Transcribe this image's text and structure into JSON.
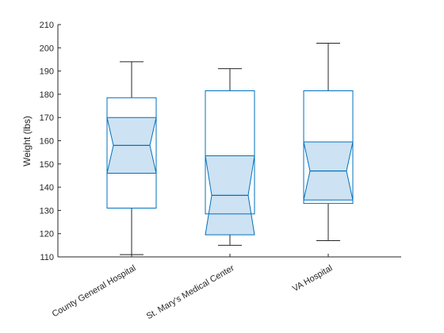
{
  "chart_data": {
    "type": "boxplot",
    "notched": true,
    "title": "",
    "xlabel": "",
    "ylabel": "Weight (lbs)",
    "ylim": [
      110,
      210
    ],
    "yticks": [
      110,
      120,
      130,
      140,
      150,
      160,
      170,
      180,
      190,
      200,
      210
    ],
    "grid": false,
    "categories": [
      "County General Hospital",
      "St. Mary's Medical Center",
      "VA Hospital"
    ],
    "boxes": [
      {
        "category": "County General Hospital",
        "whisker_low": 111,
        "q1": 131,
        "median": 158,
        "q3": 178.5,
        "whisker_high": 194,
        "notch_low": 146,
        "notch_high": 170
      },
      {
        "category": "St. Mary's Medical Center",
        "whisker_low": 115,
        "q1": 128.5,
        "median": 136.5,
        "q3": 181.5,
        "whisker_high": 191,
        "notch_low": 119.5,
        "notch_high": 153.5
      },
      {
        "category": "VA Hospital",
        "whisker_low": 117,
        "q1": 133,
        "median": 147,
        "q3": 181.5,
        "whisker_high": 202,
        "notch_low": 134.5,
        "notch_high": 159.5
      }
    ],
    "colors": {
      "box_edge": "#0072BD",
      "notch_fill": "#cde2f2",
      "whisker": "#262626",
      "axis": "#262626"
    }
  }
}
